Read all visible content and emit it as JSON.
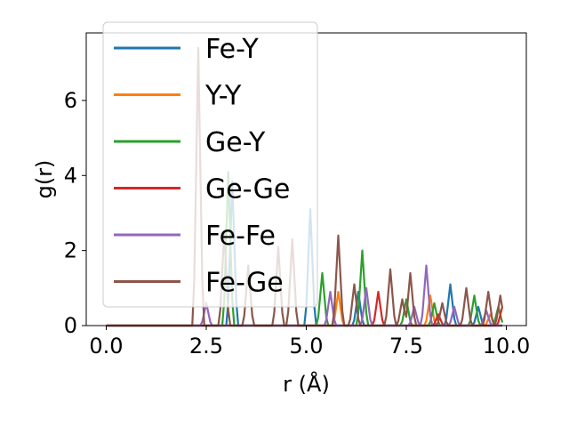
{
  "chart_data": {
    "type": "line",
    "xlabel": "r (Å)",
    "ylabel": "g(r)",
    "xlim": [
      -0.5,
      10.5
    ],
    "ylim": [
      0,
      7.8
    ],
    "x_ticks": [
      0.0,
      2.5,
      5.0,
      7.5,
      10.0
    ],
    "x_tick_labels": [
      "0.0",
      "2.5",
      "5.0",
      "7.5",
      "10.0"
    ],
    "y_ticks": [
      0,
      2,
      4,
      6
    ],
    "y_tick_labels": [
      "0",
      "2",
      "4",
      "6"
    ],
    "grid": false,
    "legend_position": "top-left",
    "series": [
      {
        "name": "Fe-Y",
        "color": "#1f77b4",
        "peaks": [
          [
            3.15,
            3.85
          ],
          [
            5.1,
            3.1
          ],
          [
            6.3,
            0.9
          ],
          [
            8.6,
            1.1
          ],
          [
            9.3,
            0.5
          ]
        ]
      },
      {
        "name": "Y-Y",
        "color": "#ff7f0e",
        "peaks": [
          [
            5.8,
            0.9
          ],
          [
            8.1,
            0.8
          ],
          [
            9.6,
            0.3
          ]
        ]
      },
      {
        "name": "Ge-Y",
        "color": "#2ca02c",
        "peaks": [
          [
            3.05,
            4.1
          ],
          [
            5.4,
            1.4
          ],
          [
            6.4,
            2.0
          ],
          [
            7.5,
            0.7
          ],
          [
            8.2,
            0.6
          ],
          [
            9.2,
            0.8
          ],
          [
            9.8,
            0.5
          ]
        ]
      },
      {
        "name": "Ge-Ge",
        "color": "#d62728",
        "peaks": [
          [
            6.8,
            0.9
          ],
          [
            8.3,
            0.3
          ],
          [
            9.9,
            0.5
          ]
        ]
      },
      {
        "name": "Fe-Fe",
        "color": "#9467bd",
        "peaks": [
          [
            2.5,
            0.6
          ],
          [
            5.6,
            0.9
          ],
          [
            6.5,
            1.0
          ],
          [
            7.7,
            0.5
          ],
          [
            8.0,
            1.6
          ],
          [
            8.7,
            0.5
          ],
          [
            9.5,
            0.4
          ]
        ]
      },
      {
        "name": "Fe-Ge",
        "color": "#8c564b",
        "peaks": [
          [
            2.3,
            7.4
          ],
          [
            2.95,
            2.5
          ],
          [
            3.55,
            1.6
          ],
          [
            4.3,
            2.1
          ],
          [
            4.65,
            2.3
          ],
          [
            5.8,
            2.4
          ],
          [
            6.2,
            1.1
          ],
          [
            7.1,
            1.5
          ],
          [
            7.4,
            0.7
          ],
          [
            7.6,
            1.4
          ],
          [
            8.4,
            0.6
          ],
          [
            9.0,
            1.0
          ],
          [
            9.55,
            0.9
          ],
          [
            9.85,
            0.8
          ]
        ]
      }
    ]
  }
}
